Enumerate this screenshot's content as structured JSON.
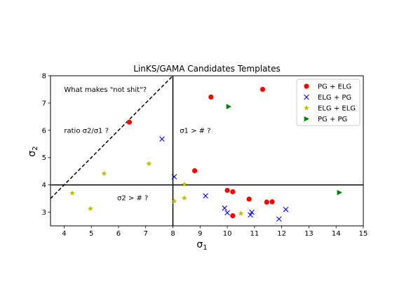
{
  "chart_data": {
    "type": "scatter",
    "title": "LinKS/GAMA Candidates Templates",
    "xlabel": "σ",
    "xlabel_sub": "1",
    "ylabel": "σ",
    "ylabel_sub": "2",
    "xlim": [
      3.5,
      15
    ],
    "ylim": [
      2.5,
      8
    ],
    "xticks": [
      4,
      5,
      6,
      7,
      8,
      9,
      10,
      11,
      12,
      13,
      14,
      15
    ],
    "yticks": [
      3,
      4,
      5,
      6,
      7,
      8
    ],
    "grid": false,
    "legend_position": "top-right",
    "series": [
      {
        "name": "PG + ELG",
        "marker": "circle",
        "color": "#ff0000",
        "points": [
          [
            6.4,
            6.3
          ],
          [
            8.8,
            4.52
          ],
          [
            9.4,
            7.22
          ],
          [
            11.3,
            7.5
          ],
          [
            10.0,
            3.8
          ],
          [
            10.2,
            3.75
          ],
          [
            10.8,
            3.48
          ],
          [
            11.45,
            3.37
          ],
          [
            11.65,
            3.38
          ],
          [
            10.2,
            2.87
          ]
        ]
      },
      {
        "name": "ELG + PG",
        "marker": "x",
        "color": "#0000ff",
        "points": [
          [
            7.6,
            5.68
          ],
          [
            8.05,
            4.3
          ],
          [
            9.2,
            3.6
          ],
          [
            9.9,
            3.15
          ],
          [
            10.0,
            2.98
          ],
          [
            10.85,
            2.9
          ],
          [
            10.9,
            3.0
          ],
          [
            11.9,
            2.75
          ],
          [
            12.15,
            3.1
          ]
        ]
      },
      {
        "name": "ELG + ELG",
        "marker": "star",
        "color": "#bfbf00",
        "points": [
          [
            4.3,
            3.7
          ],
          [
            4.97,
            3.13
          ],
          [
            5.47,
            4.42
          ],
          [
            7.12,
            4.78
          ],
          [
            8.05,
            3.4
          ],
          [
            8.42,
            3.52
          ],
          [
            8.42,
            4.02
          ],
          [
            10.5,
            2.95
          ]
        ]
      },
      {
        "name": "PG + PG",
        "marker": "triangle-right",
        "color": "#008000",
        "points": [
          [
            10.05,
            6.87
          ],
          [
            14.12,
            3.72
          ]
        ]
      }
    ],
    "reference_lines": [
      {
        "style": "dashed",
        "from": [
          3.5,
          3.5
        ],
        "to": [
          8,
          8
        ]
      },
      {
        "style": "solid",
        "from": [
          8,
          2.5
        ],
        "to": [
          8,
          8
        ]
      },
      {
        "style": "solid",
        "from": [
          3.5,
          4
        ],
        "to": [
          15,
          4
        ]
      }
    ],
    "annotations": [
      {
        "id": "question",
        "text": "What makes \"not shit\"?",
        "x": 4.0,
        "y": 7.5
      },
      {
        "id": "ratio",
        "text": "ratio σ2/σ1 ?",
        "x": 4.0,
        "y": 6.0
      },
      {
        "id": "s1",
        "text": "σ1 > # ?",
        "x": 8.25,
        "y": 6.0
      },
      {
        "id": "s2",
        "text": "σ2 > # ?",
        "x": 5.95,
        "y": 3.53
      }
    ]
  }
}
